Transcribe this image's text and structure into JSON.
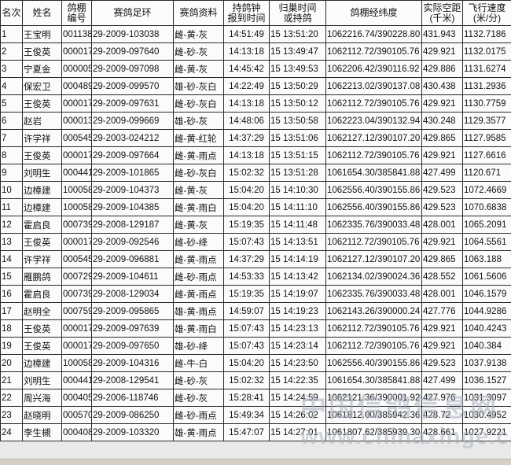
{
  "table": {
    "headers": [
      "名次",
      "姓名",
      "鸽棚\n编号",
      "赛鸽足环",
      "赛鸽资料",
      "持鸽钟\n报到时间",
      "归巢时间\n或持鸽",
      "鸽棚经纬度",
      "实际空距\n(千米)",
      "飞行速度\n(米/分)"
    ],
    "rows": [
      [
        "1",
        "王宝明",
        "001138",
        "29-2009-103038",
        "雌-黄-灰",
        "14:51:49",
        "15 13:51:20",
        "1062216.74/390228.80",
        "431.943",
        "1132.7186"
      ],
      [
        "2",
        "王俊英",
        "000017",
        "29-2009-097640",
        "雌-砂-灰",
        "14:13:18",
        "15 13:49:47",
        "1062112.72/390105.76",
        "429.921",
        "1132.0175"
      ],
      [
        "3",
        "宁夏金",
        "000005",
        "29-2009-097098",
        "雌-黄-灰",
        "14:45:42",
        "15 13:49:53",
        "1062206.42/390116.92",
        "429.886",
        "1131.6274"
      ],
      [
        "4",
        "保宏卫",
        "000489",
        "29-2009-099570",
        "雄-砂-灰白",
        "14:22:49",
        "15 13:50:29",
        "1062213.02/390137.08",
        "430.438",
        "1131.2936"
      ],
      [
        "5",
        "王俊英",
        "000017",
        "29-2009-097631",
        "雌-砂-灰白",
        "14:13:18",
        "15 13:50:12",
        "1062112.72/390105.76",
        "429.921",
        "1130.7759"
      ],
      [
        "6",
        "赵岩",
        "000013",
        "29-2009-099669",
        "雄-砂-灰",
        "14:48:06",
        "15 13:50:58",
        "1062223.04/390132.94",
        "430.248",
        "1129.3577"
      ],
      [
        "7",
        "许学祥",
        "000545",
        "29-2003-024212",
        "雌-黄-红轮",
        "14:37:29",
        "15 13:51:06",
        "1062127.12/390107.20",
        "429.865",
        "1127.9585"
      ],
      [
        "8",
        "王俊英",
        "000017",
        "29-2009-097664",
        "雌-黄-雨点",
        "14:13:18",
        "15 13:51:15",
        "1062112.72/390105.76",
        "429.921",
        "1127.6616"
      ],
      [
        "9",
        "刘明生",
        "000441",
        "29-2009-101865",
        "雌-砂-灰白",
        "15:02:32",
        "15 13:51:28",
        "1061654.30/385841.88",
        "427.499",
        "1120.671"
      ],
      [
        "10",
        "边樟建",
        "100058",
        "29-2009-104373",
        "雌-黄-灰",
        "15:04:20",
        "15 14:10:30",
        "1062556.40/390155.86",
        "429.523",
        "1072.4669"
      ],
      [
        "11",
        "边樟建",
        "100058",
        "29-2009-104385",
        "雌-黄-雨白",
        "15:04:20",
        "15 14:11:10",
        "1062556.40/390155.86",
        "429.523",
        "1070.6838"
      ],
      [
        "12",
        "霍启良",
        "000739",
        "29-2008-129187",
        "雌-黄-灰",
        "15:19:35",
        "15 14:11:48",
        "1062335.76/390033.48",
        "428.001",
        "1065.2091"
      ],
      [
        "13",
        "王俊英",
        "000017",
        "29-2009-092546",
        "雌-砂-绛",
        "15:07:43",
        "15 14:13:51",
        "1062112.72/390105.76",
        "429.921",
        "1064.5561"
      ],
      [
        "14",
        "许学祥",
        "000545",
        "29-2009-096881",
        "雌-黄-雨点",
        "14:37:29",
        "15 14:14:19",
        "1062127.12/390107.20",
        "429.865",
        "1063.188"
      ],
      [
        "15",
        "雁鹏鸽",
        "000729",
        "29-2009-104611",
        "雌-砂-雨点",
        "14:53:33",
        "15 14:13:42",
        "1062134.02/390024.36",
        "428.552",
        "1061.5606"
      ],
      [
        "16",
        "霍启良",
        "000739",
        "29-2008-129034",
        "雌-黄-雨点",
        "15:19:35",
        "15 14:19:07",
        "1062335.76/390033.48",
        "428.001",
        "1046.1579"
      ],
      [
        "17",
        "赵明全",
        "000759",
        "29-2009-095865",
        "雄-黄-雨点",
        "14:59:07",
        "15 14:19:23",
        "1062143.26/390000.24",
        "427.776",
        "1044.9286"
      ],
      [
        "18",
        "王俊英",
        "000017",
        "29-2009-097639",
        "雄-黄-雨白",
        "15:07:43",
        "15 14:23:13",
        "1062112.72/390105.76",
        "429.921",
        "1040.4243"
      ],
      [
        "19",
        "王俊英",
        "000017",
        "29-2009-097650",
        "雄-砂-绛",
        "15:07:43",
        "15 14:23:14",
        "1062112.72/390105.76",
        "429.921",
        "1040.384"
      ],
      [
        "20",
        "边樟建",
        "100058",
        "29-2009-104316",
        "雌-牛-白",
        "15:04:20",
        "15 14:23:50",
        "1062556.40/390155.86",
        "429.523",
        "1037.9138"
      ],
      [
        "21",
        "刘明生",
        "000441",
        "29-2008-129541",
        "雌-砂-灰",
        "15:02:32",
        "15 14:22:35",
        "1061654.30/385841.88",
        "427.499",
        "1036.1527"
      ],
      [
        "22",
        "周兴海",
        "000405",
        "29-2006-118746",
        "雌-砂-灰",
        "15:28:41",
        "15 14:24:59",
        "1062121.36/390001.92",
        "427.976",
        "1031.3097"
      ],
      [
        "23",
        "赵晓明",
        "000570",
        "29-2009-086250",
        "雌-砂-雨点",
        "15:49:34",
        "15 14:26:02",
        "1061812.00/385942.36",
        "428.72",
        "1030.4952"
      ],
      [
        "24",
        "李生槻",
        "000408",
        "29-2009-103320",
        "雄-黄-雨点",
        "15:47:07",
        "15 14:27:01",
        "1061807.62/385939.30",
        "428.661",
        "1027.9221"
      ]
    ]
  },
  "watermark": {
    "line1": "中国信鸽信息网",
    "line2": "www.chinaxinge.com"
  },
  "colors": {
    "grid_border": "#2a2a2a",
    "cell_background": "#fbfbfb",
    "watermark_gray": "#a5adbc",
    "bottom_strip": "#d4d0c8"
  }
}
